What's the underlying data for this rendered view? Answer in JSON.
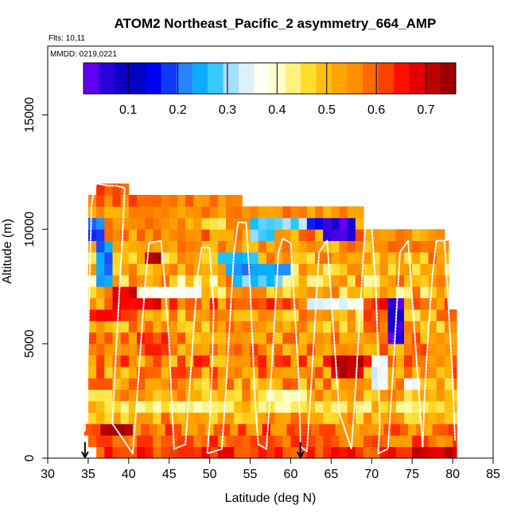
{
  "chart_data": {
    "type": "heatmap",
    "title": "ATOM2 Northeast_Pacific_2 asymmetry_664_AMP",
    "annotations": {
      "flights": "Flts: 10,11",
      "dates": "MMDD: 0219,0221"
    },
    "xlabel": "Latitude (deg N)",
    "ylabel": "Altitude (m)",
    "xlim": [
      30,
      85
    ],
    "ylim": [
      0,
      18000
    ],
    "xticks": [
      30,
      35,
      40,
      45,
      50,
      55,
      60,
      65,
      70,
      75,
      80,
      85
    ],
    "yticks": [
      0,
      5000,
      10000,
      15000
    ],
    "colorbar": {
      "min": 0.01,
      "max": 0.76,
      "ticks": [
        0.1,
        0.2,
        0.3,
        0.4,
        0.5,
        0.6,
        0.7
      ],
      "colors": [
        "#7a00ff",
        "#2200d8",
        "#0000b8",
        "#0000ff",
        "#2a7fff",
        "#00bfff",
        "#aee0ff",
        "#ffffff",
        "#ffffbf",
        "#ffe030",
        "#ffb000",
        "#ff8c00",
        "#ff5000",
        "#ff0000",
        "#c00000",
        "#8b0000"
      ]
    },
    "bin_size": {
      "lat": 1,
      "alt": 500
    },
    "layers": [
      {
        "alt": 250,
        "lat": [
          36,
          80.5
        ],
        "base": 0.64,
        "var": 0.06
      },
      {
        "alt": 750,
        "lat": [
          35,
          80.5
        ],
        "base": 0.59,
        "var": 0.06
      },
      {
        "alt": 1250,
        "lat": [
          34.5,
          80.5
        ],
        "base": 0.58,
        "var": 0.08
      },
      {
        "alt": 1750,
        "lat": [
          35,
          80.5
        ],
        "base": 0.53,
        "var": 0.08
      },
      {
        "alt": 2250,
        "lat": [
          35,
          80.5
        ],
        "base": 0.47,
        "var": 0.06
      },
      {
        "alt": 2750,
        "lat": [
          35,
          80.5
        ],
        "base": 0.52,
        "var": 0.08
      },
      {
        "alt": 3250,
        "lat": [
          35,
          80.5
        ],
        "base": 0.53,
        "var": 0.08
      },
      {
        "alt": 3750,
        "lat": [
          35,
          80.5
        ],
        "base": 0.55,
        "var": 0.08
      },
      {
        "alt": 4250,
        "lat": [
          35,
          80.5
        ],
        "base": 0.56,
        "var": 0.09
      },
      {
        "alt": 4750,
        "lat": [
          35,
          80.5
        ],
        "base": 0.56,
        "var": 0.07
      },
      {
        "alt": 5250,
        "lat": [
          35,
          80.5
        ],
        "base": 0.55,
        "var": 0.07
      },
      {
        "alt": 5750,
        "lat": [
          35,
          80.5
        ],
        "base": 0.53,
        "var": 0.08
      },
      {
        "alt": 6250,
        "lat": [
          35,
          80.5
        ],
        "base": 0.52,
        "var": 0.08
      },
      {
        "alt": 6750,
        "lat": [
          35,
          79.5
        ],
        "base": 0.57,
        "var": 0.08
      },
      {
        "alt": 7250,
        "lat": [
          35,
          79.5
        ],
        "base": 0.5,
        "var": 0.09
      },
      {
        "alt": 7750,
        "lat": [
          35,
          79.5
        ],
        "base": 0.5,
        "var": 0.1
      },
      {
        "alt": 8250,
        "lat": [
          35,
          79.5
        ],
        "base": 0.5,
        "var": 0.08
      },
      {
        "alt": 8750,
        "lat": [
          35,
          79.5
        ],
        "base": 0.52,
        "var": 0.08
      },
      {
        "alt": 9250,
        "lat": [
          35,
          79.5
        ],
        "base": 0.54,
        "var": 0.06
      },
      {
        "alt": 9750,
        "lat": [
          35,
          79
        ],
        "base": 0.55,
        "var": 0.07
      },
      {
        "alt": 10250,
        "lat": [
          35,
          69
        ],
        "base": 0.52,
        "var": 0.08
      },
      {
        "alt": 10750,
        "lat": [
          35,
          69
        ],
        "base": 0.55,
        "var": 0.05
      },
      {
        "alt": 11250,
        "lat": [
          35,
          54
        ],
        "base": 0.58,
        "var": 0.05
      },
      {
        "alt": 11750,
        "lat": [
          36,
          40
        ],
        "base": 0.6,
        "var": 0.04
      }
    ],
    "anomalies": [
      {
        "lat": [
          35,
          37
        ],
        "alt": [
          9500,
          10500
        ],
        "value": 0.2
      },
      {
        "lat": [
          36,
          38
        ],
        "alt": [
          7500,
          9500
        ],
        "value": 0.22
      },
      {
        "lat": [
          55,
          58
        ],
        "alt": [
          9750,
          10250
        ],
        "value": 0.28
      },
      {
        "lat": [
          58,
          62
        ],
        "alt": [
          10000,
          10500
        ],
        "value": 0.3
      },
      {
        "lat": [
          62,
          66
        ],
        "alt": [
          10000,
          10500
        ],
        "value": 0.15
      },
      {
        "lat": [
          64,
          68
        ],
        "alt": [
          9500,
          10500
        ],
        "value": 0.05
      },
      {
        "lat": [
          51,
          56
        ],
        "alt": [
          8500,
          9000
        ],
        "value": 0.25
      },
      {
        "lat": [
          52,
          60
        ],
        "alt": [
          8000,
          8500
        ],
        "value": 0.22
      },
      {
        "lat": [
          53,
          59
        ],
        "alt": [
          7500,
          8000
        ],
        "value": 0.28
      },
      {
        "lat": [
          38,
          44
        ],
        "alt": [
          6500,
          7500
        ],
        "value": 0.68
      },
      {
        "lat": [
          35,
          41
        ],
        "alt": [
          6000,
          6500
        ],
        "value": 0.65
      },
      {
        "lat": [
          41,
          49
        ],
        "alt": [
          7000,
          7500
        ],
        "value": 0.38
      },
      {
        "lat": [
          62,
          70
        ],
        "alt": [
          6500,
          7000
        ],
        "value": 0.36
      },
      {
        "lat": [
          69,
          71
        ],
        "alt": [
          5500,
          7000
        ],
        "value": 0.62
      },
      {
        "lat": [
          72,
          74
        ],
        "alt": [
          5000,
          7000
        ],
        "value": 0.05
      },
      {
        "lat": [
          71,
          72
        ],
        "alt": [
          6500,
          7000
        ],
        "value": 0.7
      },
      {
        "lat": [
          65,
          69
        ],
        "alt": [
          3750,
          4250
        ],
        "value": 0.7
      },
      {
        "lat": [
          70,
          72
        ],
        "alt": [
          3000,
          4500
        ],
        "value": 0.33
      },
      {
        "lat": [
          36,
          40
        ],
        "alt": [
          1000,
          1500
        ],
        "value": 0.72
      },
      {
        "lat": [
          33,
          36
        ],
        "alt": [
          500,
          1500
        ],
        "value": 0.6
      },
      {
        "lat": [
          45,
          52
        ],
        "alt": [
          2000,
          2500
        ],
        "value": 0.42
      },
      {
        "lat": [
          57,
          62
        ],
        "alt": [
          2000,
          3000
        ],
        "value": 0.43
      },
      {
        "lat": [
          75,
          80
        ],
        "alt": [
          0,
          500
        ],
        "value": 0.7
      },
      {
        "lat": [
          38,
          41
        ],
        "alt": [
          0,
          500
        ],
        "value": 0.6
      },
      {
        "lat": [
          41,
          45
        ],
        "alt": [
          4750,
          5250
        ],
        "value": 0.62
      },
      {
        "lat": [
          42,
          44
        ],
        "alt": [
          8500,
          9000
        ],
        "value": 0.73
      },
      {
        "lat": [
          74,
          76
        ],
        "alt": [
          3000,
          3500
        ],
        "value": 0.35
      }
    ],
    "flight_track": [
      [
        34.6,
        1200
      ],
      [
        34.8,
        3000
      ],
      [
        35.0,
        5000
      ],
      [
        35.2,
        8000
      ],
      [
        35.4,
        11000
      ],
      [
        35.6,
        11500
      ],
      [
        36.0,
        12000
      ],
      [
        37.5,
        11900
      ],
      [
        38.5,
        11900
      ],
      [
        39.5,
        11800
      ],
      [
        39.2,
        9500
      ],
      [
        38.8,
        7000
      ],
      [
        38.5,
        5000
      ],
      [
        38.2,
        3000
      ],
      [
        38.0,
        1500
      ],
      [
        40.5,
        200
      ],
      [
        41.0,
        2500
      ],
      [
        41.5,
        5000
      ],
      [
        42.0,
        7500
      ],
      [
        42.5,
        9400
      ],
      [
        44.0,
        9500
      ],
      [
        44.5,
        7500
      ],
      [
        45.0,
        5000
      ],
      [
        45.3,
        2500
      ],
      [
        45.6,
        400
      ],
      [
        47.0,
        600
      ],
      [
        47.5,
        3000
      ],
      [
        48.0,
        5500
      ],
      [
        48.5,
        8000
      ],
      [
        49.0,
        9200
      ],
      [
        50.0,
        9200
      ],
      [
        50.5,
        6500
      ],
      [
        50.3,
        4000
      ],
      [
        50.0,
        1500
      ],
      [
        49.7,
        200
      ],
      [
        51.5,
        400
      ],
      [
        52.0,
        3000
      ],
      [
        52.5,
        6000
      ],
      [
        53.0,
        9000
      ],
      [
        53.5,
        10300
      ],
      [
        54.5,
        10300
      ],
      [
        55.0,
        7500
      ],
      [
        55.3,
        5000
      ],
      [
        55.6,
        2500
      ],
      [
        56.0,
        600
      ],
      [
        57.0,
        400
      ],
      [
        57.5,
        3000
      ],
      [
        58.0,
        6000
      ],
      [
        58.5,
        9000
      ],
      [
        59.0,
        9600
      ],
      [
        60.0,
        9400
      ],
      [
        60.5,
        6500
      ],
      [
        61.0,
        3500
      ],
      [
        61.2,
        500
      ],
      [
        62.0,
        300
      ],
      [
        62.5,
        3000
      ],
      [
        63.0,
        6000
      ],
      [
        63.5,
        9000
      ],
      [
        64.5,
        9500
      ],
      [
        65.0,
        7000
      ],
      [
        65.5,
        4500
      ],
      [
        66.0,
        2000
      ],
      [
        67.5,
        400
      ],
      [
        68.0,
        3000
      ],
      [
        68.5,
        6000
      ],
      [
        69.0,
        9000
      ],
      [
        69.3,
        10500
      ],
      [
        70.0,
        10200
      ],
      [
        70.5,
        7500
      ],
      [
        70.8,
        4500
      ],
      [
        71.0,
        1500
      ],
      [
        70.8,
        200
      ],
      [
        72.0,
        400
      ],
      [
        72.5,
        3000
      ],
      [
        73.0,
        6000
      ],
      [
        73.5,
        9000
      ],
      [
        74.5,
        9500
      ],
      [
        75.0,
        7000
      ],
      [
        75.5,
        4500
      ],
      [
        76.0,
        2000
      ],
      [
        76.3,
        500
      ],
      [
        76.5,
        2500
      ],
      [
        77.0,
        5500
      ],
      [
        77.5,
        8000
      ],
      [
        78.0,
        9500
      ],
      [
        79.0,
        9500
      ],
      [
        79.5,
        6500
      ],
      [
        80.0,
        3500
      ],
      [
        80.3,
        800
      ]
    ],
    "markers": [
      {
        "lat": 34.6,
        "label": "arrow"
      },
      {
        "lat": 61.2,
        "label": "arrow"
      }
    ]
  }
}
